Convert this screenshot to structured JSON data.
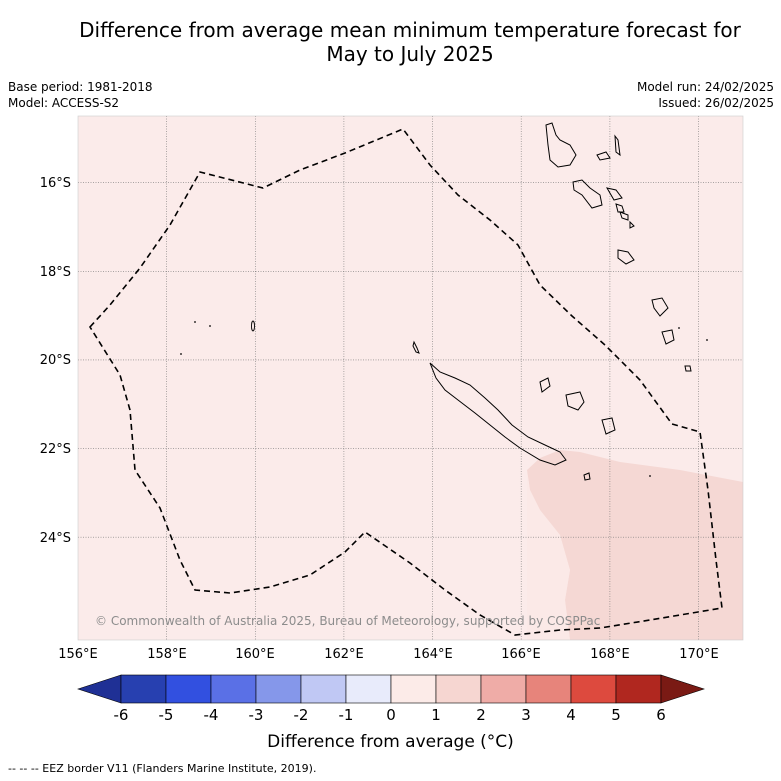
{
  "header": {
    "title_line1": "Difference from average mean minimum temperature forecast for",
    "title_line2": "May to July 2025",
    "base_period": "Base period: 1981-2018",
    "model": "Model: ACCESS-S2",
    "model_run": "Model run: 24/02/2025",
    "issued": "Issued: 26/02/2025"
  },
  "map": {
    "lon_labels": [
      "156°E",
      "158°E",
      "160°E",
      "162°E",
      "164°E",
      "166°E",
      "168°E",
      "170°E"
    ],
    "lat_labels": [
      "16°S",
      "18°S",
      "20°S",
      "22°S",
      "24°S"
    ],
    "copyright": "© Commonwealth of Australia 2025, Bureau of Meteorology, supported by COSPPac",
    "colors": {
      "background_anomaly": "#fbebea",
      "warm_anomaly": "#f6d9d6",
      "inner_zone": "#fdeeeb",
      "eez_line": "#000000"
    }
  },
  "legend": {
    "labels": [
      "-6",
      "-5",
      "-4",
      "-3",
      "-2",
      "-1",
      "0",
      "1",
      "2",
      "3",
      "4",
      "5",
      "6"
    ],
    "colors": [
      "#1f3095",
      "#2740b0",
      "#3250e0",
      "#5a70e6",
      "#8597ea",
      "#c0c8f4",
      "#e8ebfb",
      "#fcebe8",
      "#f6d6d1",
      "#efaca7",
      "#e7847b",
      "#dd4a3e",
      "#b0271f",
      "#7a1a14"
    ],
    "title": "Difference from average (°C)"
  },
  "footnote": "--  --  -- EEZ border V11 (Flanders Marine Institute, 2019)."
}
